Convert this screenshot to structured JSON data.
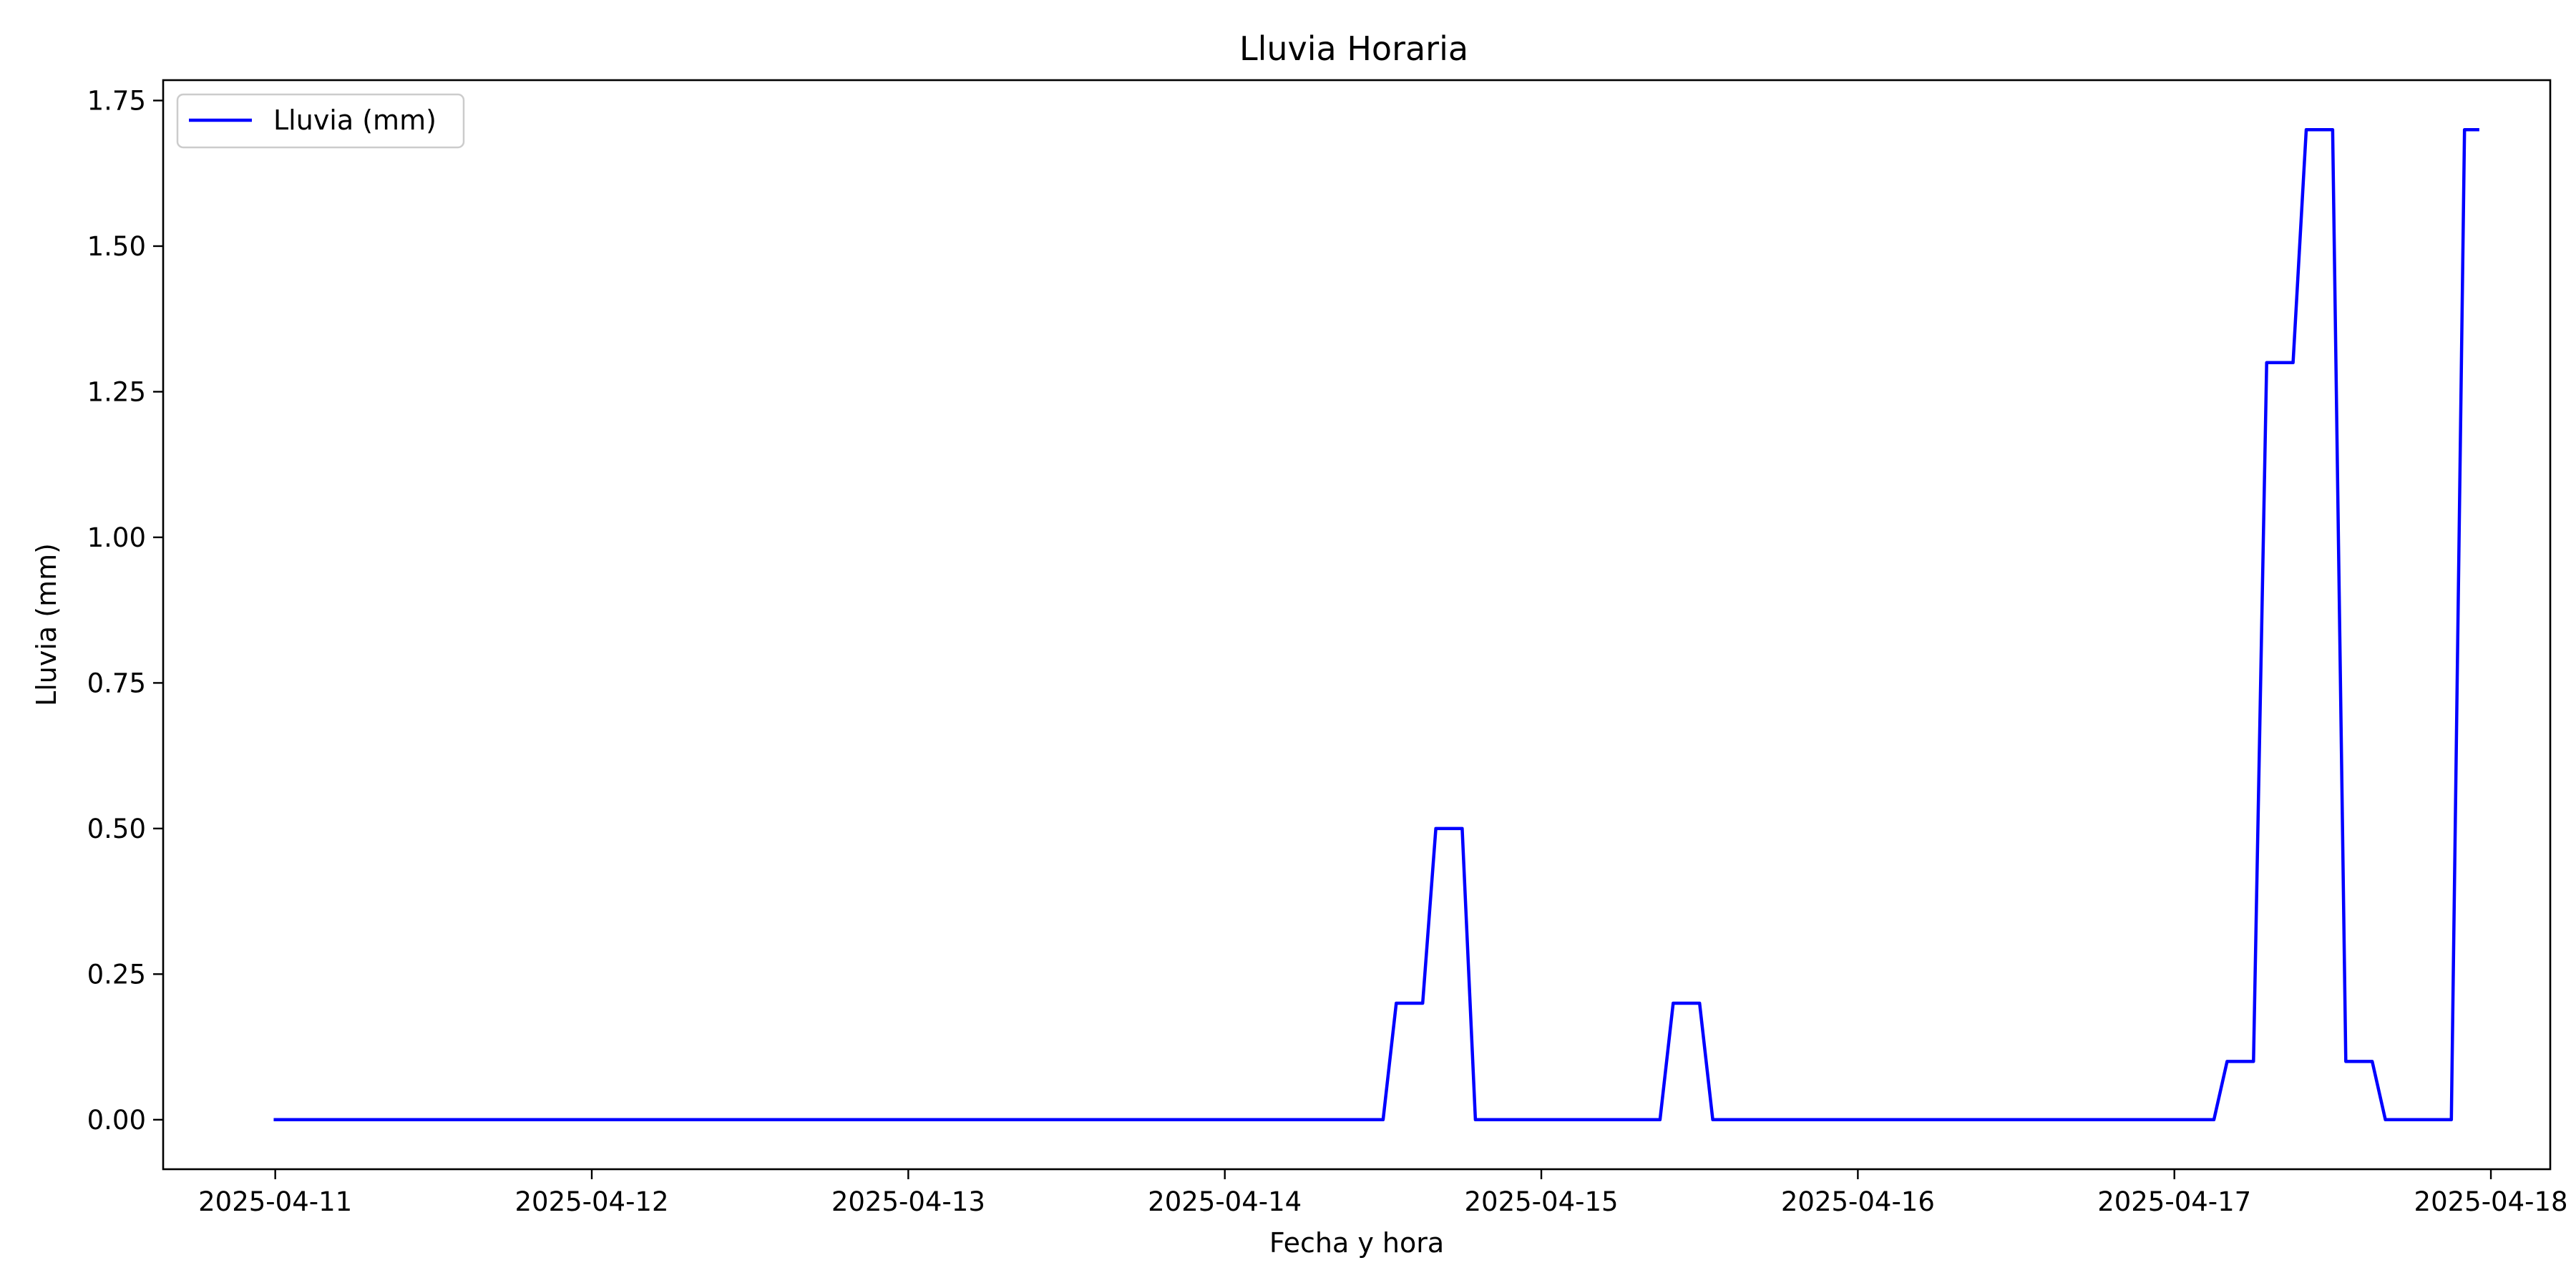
{
  "chart_data": {
    "type": "line",
    "title": "Lluvia Horaria",
    "xlabel": "Fecha y hora",
    "ylabel": "Lluvia (mm)",
    "x_tick_labels": [
      "2025-04-11",
      "2025-04-12",
      "2025-04-13",
      "2025-04-14",
      "2025-04-15",
      "2025-04-16",
      "2025-04-17",
      "2025-04-18"
    ],
    "y_tick_labels": [
      "0.00",
      "0.25",
      "0.50",
      "0.75",
      "1.00",
      "1.25",
      "1.50",
      "1.75"
    ],
    "y_ticks": [
      0,
      0.25,
      0.5,
      0.75,
      1.0,
      1.25,
      1.5,
      1.75
    ],
    "xlim": [
      "2025-04-10 15:30",
      "2025-04-18 04:30"
    ],
    "ylim": [
      -0.085,
      1.785
    ],
    "grid": false,
    "legend_position": "top-left",
    "series": [
      {
        "name": "Lluvia (mm)",
        "color": "#0000ff",
        "x": [
          "2025-04-11 00:00",
          "2025-04-14 12:00",
          "2025-04-14 13:00",
          "2025-04-14 15:00",
          "2025-04-14 16:00",
          "2025-04-14 18:00",
          "2025-04-14 19:00",
          "2025-04-15 09:00",
          "2025-04-15 10:00",
          "2025-04-15 12:00",
          "2025-04-15 13:00",
          "2025-04-17 03:00",
          "2025-04-17 04:00",
          "2025-04-17 06:00",
          "2025-04-17 07:00",
          "2025-04-17 09:00",
          "2025-04-17 10:00",
          "2025-04-17 12:00",
          "2025-04-17 13:00",
          "2025-04-17 15:00",
          "2025-04-17 16:00",
          "2025-04-17 21:00",
          "2025-04-17 22:00",
          "2025-04-17 23:00"
        ],
        "y": [
          0.0,
          0.0,
          0.2,
          0.2,
          0.5,
          0.5,
          0.0,
          0.0,
          0.2,
          0.2,
          0.0,
          0.0,
          0.1,
          0.1,
          1.3,
          1.3,
          1.7,
          1.7,
          0.1,
          0.1,
          0.0,
          0.0,
          1.7,
          1.7
        ]
      }
    ]
  }
}
